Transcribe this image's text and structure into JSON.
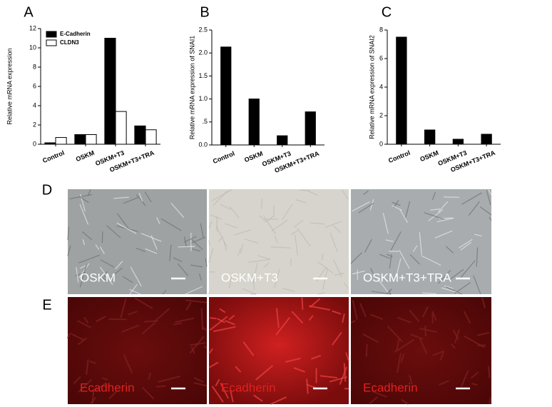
{
  "chart_data": [
    {
      "type": "bar",
      "label": "A",
      "ylabel": "Relative mRNA expression",
      "categories": [
        "Control",
        "OSKM",
        "OSKM+T3",
        "OSKM+T3+TRA"
      ],
      "series": [
        {
          "name": "E-Cadherin",
          "color": "#000000",
          "values": [
            0.15,
            1.0,
            11.0,
            1.9
          ]
        },
        {
          "name": "CLDN3",
          "color": "#ffffff",
          "values": [
            0.7,
            1.0,
            3.4,
            1.5
          ]
        }
      ],
      "ylim": [
        0,
        12
      ],
      "yticks": [
        0,
        2,
        4,
        6,
        8,
        10,
        12
      ],
      "legend": "upper left"
    },
    {
      "type": "bar",
      "label": "B",
      "ylabel": "Relative mRNA expression of SNAI1",
      "categories": [
        "Control",
        "OSKM",
        "OSKM+T3",
        "OSKM+T3+TRA"
      ],
      "values": [
        2.13,
        1.0,
        0.2,
        0.72
      ],
      "color": "#000000",
      "ylim": [
        0,
        2.5
      ],
      "yticks": [
        {
          "value": 0,
          "label": "0.0"
        },
        {
          "value": 0.5,
          "label": ".5"
        },
        {
          "value": 1,
          "label": "1.0"
        },
        {
          "value": 1.5,
          "label": "1.5"
        },
        {
          "value": 2,
          "label": "2.0"
        },
        {
          "value": 2.5,
          "label": "2.5"
        }
      ]
    },
    {
      "type": "bar",
      "label": "C",
      "ylabel": "Relative mRNA expression of SNAI2",
      "categories": [
        "Control",
        "OSKM",
        "OSKM+T3",
        "OSKM+T3+TRA"
      ],
      "values": [
        7.5,
        1.0,
        0.35,
        0.7
      ],
      "color": "#000000",
      "ylim": [
        0,
        8
      ],
      "yticks": [
        0,
        2,
        4,
        6,
        8
      ]
    }
  ],
  "micrographs": [
    {
      "label": "D",
      "images": [
        "OSKM",
        "OSKM+T3",
        "OSKM+T3+TRA"
      ]
    },
    {
      "label": "E",
      "images": [
        "Ecadherin",
        "Ecadherin",
        "Ecadherin"
      ]
    }
  ]
}
